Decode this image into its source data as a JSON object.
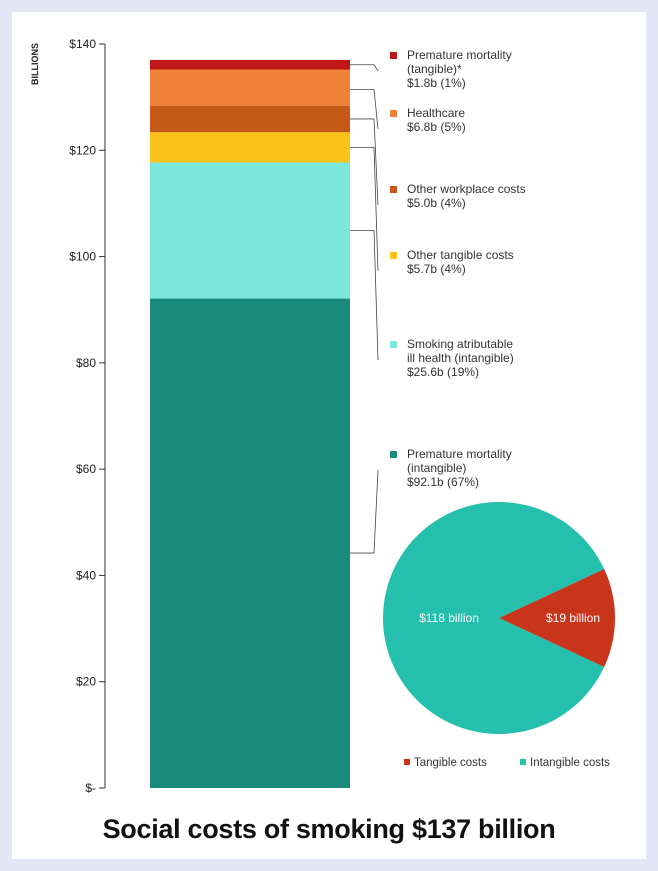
{
  "chart_data": [
    {
      "type": "bar",
      "stacked": true,
      "title": "Social costs of smoking $137 billion",
      "ylabel": "BILLIONS",
      "ylim": [
        0,
        140
      ],
      "yticks": [
        0,
        20,
        40,
        60,
        80,
        100,
        120,
        140
      ],
      "ytick_labels": [
        "$-",
        "$20",
        "$40",
        "$60",
        "$80",
        "$100",
        "$120",
        "$140"
      ],
      "grid": false,
      "legend_position": "right",
      "series": [
        {
          "name": "Premature mortality (intangible)",
          "value": 92.1,
          "color": "#1a8a7c",
          "label_lines": [
            "Premature mortality",
            "(intangible)",
            "$92.1b (67%)"
          ]
        },
        {
          "name": "Smoking atributable ill health (intangible)",
          "value": 25.6,
          "color": "#7ae6dc",
          "label_lines": [
            "Smoking atributable",
            "ill health (intangible)",
            "$25.6b (19%)"
          ]
        },
        {
          "name": "Other tangible costs",
          "value": 5.7,
          "color": "#fbc21a",
          "label_lines": [
            "Other tangible costs",
            "$5.7b (4%)"
          ]
        },
        {
          "name": "Other workplace costs",
          "value": 5.0,
          "color": "#c55a16",
          "label_lines": [
            "Other workplace costs",
            "$5.0b (4%)"
          ]
        },
        {
          "name": "Healthcare",
          "value": 6.8,
          "color": "#f0823a",
          "label_lines": [
            "Healthcare",
            "$6.8b (5%)"
          ]
        },
        {
          "name": "Premature mortality (tangible)*",
          "value": 1.8,
          "color": "#c01818",
          "label_lines": [
            "Premature mortality",
            "(tangible)*",
            "$1.8b (1%)"
          ]
        }
      ]
    },
    {
      "type": "pie",
      "slices": [
        {
          "name": "Tangible costs",
          "value": 19,
          "label": "$19 billion",
          "color": "#c8351a"
        },
        {
          "name": "Intangible costs",
          "value": 118,
          "label": "$118 billion",
          "color": "#24bfad"
        }
      ],
      "legend_position": "bottom"
    }
  ],
  "title": "Social costs of smoking $137 billion"
}
